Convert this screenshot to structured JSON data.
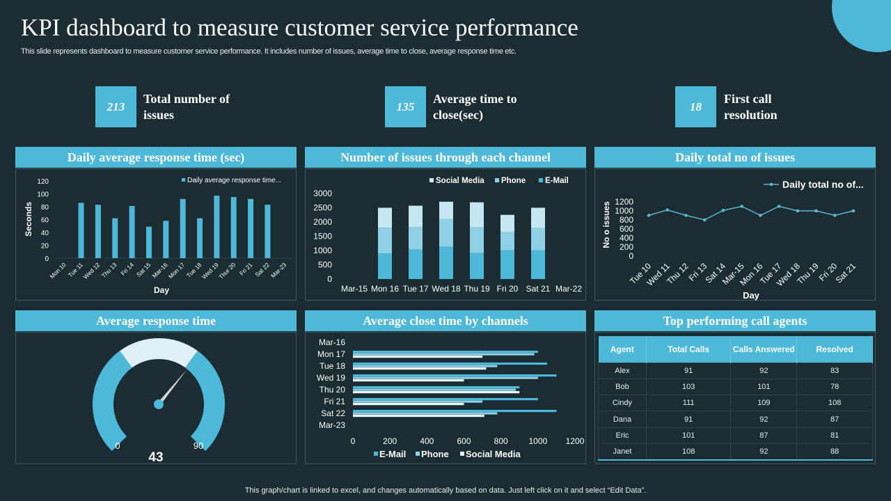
{
  "title": "KPI dashboard to measure customer service performance",
  "subtitle": "This slide represents dashboard to measure customer service performance. It includes number of issues, average time to close, average response time etc.",
  "kpis": [
    {
      "value": "213",
      "label": "Total number of issues"
    },
    {
      "value": "135",
      "label": "Average time to close(sec)"
    },
    {
      "value": "18",
      "label": "First call resolution"
    }
  ],
  "colors": {
    "accent": "#4db8d8",
    "email": "#4db8d8",
    "phone": "#8fd0e6",
    "social": "#c4e7f2",
    "social_hbar": "#e8f5f9",
    "background": "#1b2c32"
  },
  "panels": {
    "daily_avg": "Daily average response time (sec)",
    "issues_channel": "Number of  issues through each channel",
    "daily_total": "Daily total no of  issues",
    "avg_response": "Average response time",
    "avg_close": "Average close time by channels",
    "top_agents": "Top performing call agents"
  },
  "chart_data": [
    {
      "type": "bar",
      "legend": "Daily average response time...",
      "xlabel": "Day",
      "ylabel": "Seconds",
      "ylim": [
        0,
        120
      ],
      "yticks": [
        0,
        20,
        40,
        60,
        80,
        100,
        120
      ],
      "categories": [
        "Mon 10",
        "Tue 11",
        "Wed 12",
        "Thu 13",
        "Fri 14",
        "Sat 15",
        "Mar-16",
        "Mon 17",
        "Tue 18",
        "Wed 19",
        "Thur 20",
        "Fri 21",
        "Sat 22",
        "Mar-23"
      ],
      "values": [
        null,
        86,
        83,
        62,
        81,
        49,
        58,
        92,
        62,
        97,
        95,
        92,
        83,
        null
      ]
    },
    {
      "type": "bar",
      "stacked": true,
      "ylim": [
        0,
        3000
      ],
      "yticks": [
        0,
        500,
        1000,
        1500,
        2000,
        2500,
        3000
      ],
      "categories": [
        "Mar-15",
        "Mon 16",
        "Tue 17",
        "Wed 18",
        "Thu 19",
        "Fri 20",
        "Sat 21",
        "Mar-22"
      ],
      "legend_order": [
        "Social Media",
        "Phone",
        "E-Mail"
      ],
      "series": [
        {
          "name": "E-Mail",
          "values": [
            null,
            900,
            1030,
            1130,
            910,
            1010,
            1010,
            null
          ]
        },
        {
          "name": "Phone",
          "values": [
            null,
            900,
            790,
            970,
            900,
            630,
            780,
            null
          ]
        },
        {
          "name": "Social Media",
          "values": [
            null,
            700,
            750,
            610,
            880,
            610,
            710,
            null
          ]
        }
      ]
    },
    {
      "type": "line",
      "legend": "Daily total no of...",
      "xlabel": "Day",
      "ylabel": "No o issues",
      "ylim": [
        0,
        1200
      ],
      "yticks": [
        0,
        200,
        400,
        600,
        800,
        1000,
        1200
      ],
      "categories": [
        "Tue 10",
        "Wed 11",
        "Thu 12",
        "Fri 13",
        "Sat 14",
        "Mar-15",
        "Mon 16",
        "Tue 17",
        "Wed 18",
        "Thu 19",
        "Fri 20",
        "Sat 21"
      ],
      "values": [
        900,
        1020,
        900,
        800,
        1010,
        1100,
        900,
        1100,
        1000,
        1000,
        900,
        1000
      ]
    },
    {
      "type": "gauge",
      "value": 43,
      "min": 0,
      "max": 90,
      "min_label": "0",
      "max_label": "90"
    },
    {
      "type": "bar",
      "orientation": "horizontal",
      "xlim": [
        0,
        1200
      ],
      "xticks": [
        0,
        200,
        400,
        600,
        800,
        1000,
        1200
      ],
      "categories": [
        "Mar-16",
        "Mon 17",
        "Tue 18",
        "Wed 19",
        "Thu 20",
        "Fri 21",
        "Sat 22",
        "Mar-23"
      ],
      "series": [
        {
          "name": "E-Mail",
          "values": [
            null,
            1000,
            1050,
            1100,
            900,
            1000,
            1100,
            null
          ]
        },
        {
          "name": "Phone",
          "values": [
            null,
            980,
            780,
            1000,
            880,
            700,
            780,
            null
          ]
        },
        {
          "name": "Social Media",
          "values": [
            null,
            700,
            720,
            600,
            900,
            600,
            710,
            null
          ]
        }
      ]
    },
    {
      "type": "table",
      "columns": [
        "Agent",
        "Total Calls",
        "Calls Answered",
        "Resolved"
      ],
      "rows": [
        [
          "Alex",
          "91",
          "92",
          "83"
        ],
        [
          "Bob",
          "103",
          "101",
          "78"
        ],
        [
          "Cindy",
          "111",
          "109",
          "108"
        ],
        [
          "Dana",
          "91",
          "92",
          "87"
        ],
        [
          "Eric",
          "101",
          "87",
          "81"
        ],
        [
          "Janet",
          "108",
          "92",
          "88"
        ]
      ]
    }
  ],
  "footer": "This graph/chart is linked to excel,  and changes automatically based on data. Just left click on it and select “Edit Data”."
}
